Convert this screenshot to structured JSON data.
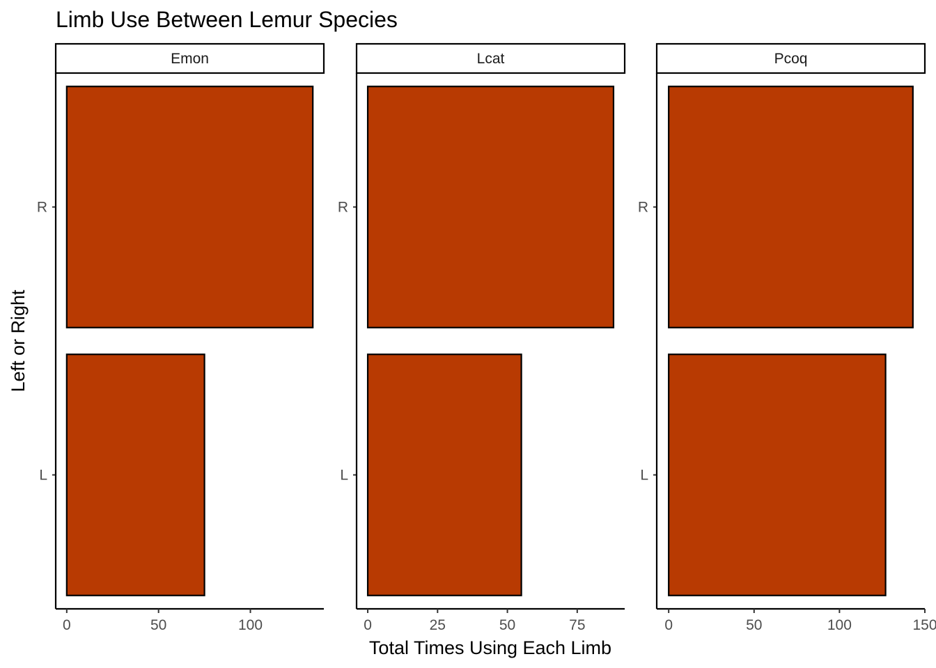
{
  "chart_data": {
    "type": "bar",
    "orientation": "horizontal",
    "title": "Limb Use Between Lemur Species",
    "xlabel": "Total Times Using Each Limb",
    "ylabel": "Left or Right",
    "categories": [
      "L",
      "R"
    ],
    "bar_color": "#B83A02",
    "bar_outline": "#000000",
    "grid": false,
    "legend": "none",
    "panels": [
      {
        "name": "Emon",
        "xlim": [
          -6,
          140
        ],
        "ticks": [
          0,
          50,
          100
        ],
        "values": {
          "L": 75,
          "R": 134
        }
      },
      {
        "name": "Lcat",
        "xlim": [
          -4,
          92
        ],
        "ticks": [
          0,
          25,
          50,
          75
        ],
        "values": {
          "L": 55,
          "R": 88
        }
      },
      {
        "name": "Pcoq",
        "xlim": [
          -7,
          150
        ],
        "ticks": [
          0,
          50,
          100,
          150
        ],
        "values": {
          "L": 127,
          "R": 143
        }
      }
    ]
  }
}
